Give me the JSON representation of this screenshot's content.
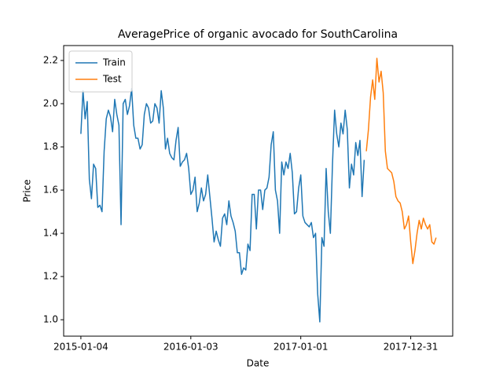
{
  "chart_data": {
    "type": "line",
    "title": "AveragePrice of organic avocado for SouthCarolina",
    "xlabel": "Date",
    "ylabel": "Price",
    "xlim": [
      "2014-11-08",
      "2018-05-19"
    ],
    "xticks": [
      "2015-01-04",
      "2016-01-03",
      "2017-01-01",
      "2017-12-31"
    ],
    "ylim": [
      0.924,
      2.269
    ],
    "yticks": [
      {
        "value": 1,
        "label": "1.0"
      },
      1.2,
      1.4,
      1.6,
      1.8,
      {
        "value": 2,
        "label": "2.0"
      },
      2.2
    ],
    "legend": "upper left",
    "series": [
      {
        "name": "Train",
        "color": "#1f77b4",
        "x": [
          "2015-01-04",
          "2015-01-11",
          "2015-01-18",
          "2015-01-25",
          "2015-02-01",
          "2015-02-08",
          "2015-02-15",
          "2015-02-22",
          "2015-03-01",
          "2015-03-08",
          "2015-03-15",
          "2015-03-22",
          "2015-03-29",
          "2015-04-05",
          "2015-04-12",
          "2015-04-19",
          "2015-04-26",
          "2015-05-03",
          "2015-05-10",
          "2015-05-17",
          "2015-05-24",
          "2015-05-31",
          "2015-06-07",
          "2015-06-14",
          "2015-06-21",
          "2015-06-28",
          "2015-07-05",
          "2015-07-12",
          "2015-07-19",
          "2015-07-26",
          "2015-08-02",
          "2015-08-09",
          "2015-08-16",
          "2015-08-23",
          "2015-08-30",
          "2015-09-06",
          "2015-09-13",
          "2015-09-20",
          "2015-09-27",
          "2015-10-04",
          "2015-10-11",
          "2015-10-18",
          "2015-10-25",
          "2015-11-01",
          "2015-11-08",
          "2015-11-15",
          "2015-11-22",
          "2015-11-29",
          "2015-12-06",
          "2015-12-13",
          "2015-12-20",
          "2015-12-27",
          "2016-01-03",
          "2016-01-10",
          "2016-01-17",
          "2016-01-24",
          "2016-01-31",
          "2016-02-07",
          "2016-02-14",
          "2016-02-21",
          "2016-02-28",
          "2016-03-06",
          "2016-03-13",
          "2016-03-20",
          "2016-03-27",
          "2016-04-03",
          "2016-04-10",
          "2016-04-17",
          "2016-04-24",
          "2016-05-01",
          "2016-05-08",
          "2016-05-15",
          "2016-05-22",
          "2016-05-29",
          "2016-06-05",
          "2016-06-12",
          "2016-06-19",
          "2016-06-26",
          "2016-07-03",
          "2016-07-10",
          "2016-07-17",
          "2016-07-24",
          "2016-07-31",
          "2016-08-07",
          "2016-08-14",
          "2016-08-21",
          "2016-08-28",
          "2016-09-04",
          "2016-09-11",
          "2016-09-18",
          "2016-09-25",
          "2016-10-02",
          "2016-10-09",
          "2016-10-16",
          "2016-10-23",
          "2016-10-30",
          "2016-11-06",
          "2016-11-13",
          "2016-11-20",
          "2016-11-27",
          "2016-12-04",
          "2016-12-11",
          "2016-12-18",
          "2016-12-25",
          "2017-01-01",
          "2017-01-08",
          "2017-01-15",
          "2017-01-22",
          "2017-01-29",
          "2017-02-05",
          "2017-02-12",
          "2017-02-19",
          "2017-02-26",
          "2017-03-05",
          "2017-03-12",
          "2017-03-19",
          "2017-03-26",
          "2017-04-02",
          "2017-04-09",
          "2017-04-16",
          "2017-04-23",
          "2017-04-30",
          "2017-05-07",
          "2017-05-14",
          "2017-05-21",
          "2017-05-28",
          "2017-06-04",
          "2017-06-11",
          "2017-06-18",
          "2017-06-25",
          "2017-07-02",
          "2017-07-09",
          "2017-07-16",
          "2017-07-23",
          "2017-07-30"
        ],
        "values": [
          1.86,
          2.06,
          1.93,
          2.01,
          1.65,
          1.56,
          1.72,
          1.7,
          1.52,
          1.53,
          1.5,
          1.78,
          1.93,
          1.97,
          1.94,
          1.87,
          2.02,
          1.95,
          1.9,
          1.44,
          2.0,
          2.02,
          1.95,
          1.99,
          2.07,
          1.9,
          1.84,
          1.84,
          1.79,
          1.81,
          1.95,
          2.0,
          1.98,
          1.91,
          1.92,
          2.0,
          1.98,
          1.91,
          2.06,
          1.98,
          1.79,
          1.84,
          1.77,
          1.75,
          1.74,
          1.83,
          1.89,
          1.71,
          1.73,
          1.74,
          1.77,
          1.7,
          1.58,
          1.6,
          1.66,
          1.5,
          1.54,
          1.61,
          1.55,
          1.58,
          1.67,
          1.57,
          1.47,
          1.36,
          1.41,
          1.37,
          1.34,
          1.47,
          1.49,
          1.44,
          1.55,
          1.48,
          1.45,
          1.41,
          1.31,
          1.31,
          1.21,
          1.24,
          1.23,
          1.35,
          1.32,
          1.58,
          1.58,
          1.42,
          1.6,
          1.6,
          1.51,
          1.6,
          1.61,
          1.66,
          1.81,
          1.87,
          1.6,
          1.55,
          1.4,
          1.73,
          1.67,
          1.73,
          1.7,
          1.77,
          1.68,
          1.49,
          1.5,
          1.61,
          1.67,
          1.48,
          1.45,
          1.44,
          1.43,
          1.45,
          1.38,
          1.4,
          1.12,
          0.99,
          1.38,
          1.34,
          1.7,
          1.5,
          1.4,
          1.72,
          1.97,
          1.86,
          1.8,
          1.91,
          1.86,
          1.97,
          1.88,
          1.61,
          1.72,
          1.67,
          1.82,
          1.76,
          1.83,
          1.57,
          1.74
        ]
      },
      {
        "name": "Test",
        "color": "#ff7f0e",
        "x": [
          "2017-08-06",
          "2017-08-13",
          "2017-08-20",
          "2017-08-27",
          "2017-09-03",
          "2017-09-10",
          "2017-09-17",
          "2017-09-24",
          "2017-10-01",
          "2017-10-08",
          "2017-10-15",
          "2017-10-22",
          "2017-10-29",
          "2017-11-05",
          "2017-11-12",
          "2017-11-19",
          "2017-11-26",
          "2017-12-03",
          "2017-12-10",
          "2017-12-17",
          "2017-12-24",
          "2017-12-31",
          "2018-01-07",
          "2018-01-14",
          "2018-01-21",
          "2018-01-28",
          "2018-02-04",
          "2018-02-11",
          "2018-02-18",
          "2018-02-25",
          "2018-03-04",
          "2018-03-11",
          "2018-03-18",
          "2018-03-25"
        ],
        "values": [
          1.78,
          1.88,
          2.03,
          2.11,
          2.02,
          2.21,
          2.1,
          2.15,
          2.05,
          1.78,
          1.7,
          1.69,
          1.68,
          1.64,
          1.57,
          1.55,
          1.54,
          1.5,
          1.42,
          1.44,
          1.48,
          1.36,
          1.26,
          1.32,
          1.4,
          1.46,
          1.42,
          1.47,
          1.44,
          1.42,
          1.44,
          1.36,
          1.35,
          1.38
        ]
      }
    ]
  }
}
